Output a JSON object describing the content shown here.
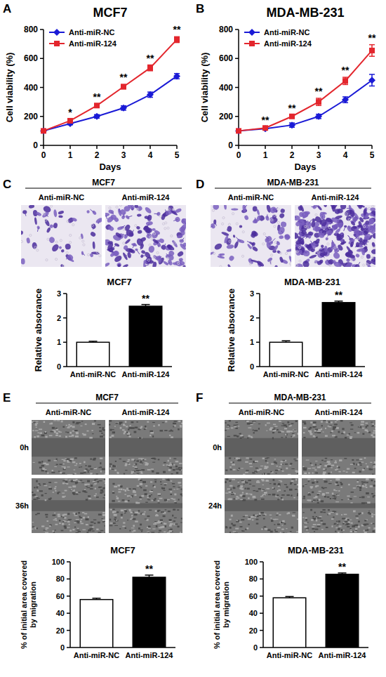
{
  "chart_data": [
    {
      "panel": "A",
      "type": "line",
      "title": "MCF7",
      "x_label": "Days",
      "y_label": "Cell viability (%)",
      "x": [
        0,
        1,
        2,
        3,
        4,
        5
      ],
      "xlim": [
        0,
        5
      ],
      "xticks": [
        0,
        1,
        2,
        3,
        4,
        5
      ],
      "ylim": [
        0,
        800
      ],
      "yticks": [
        0,
        200,
        400,
        600,
        800
      ],
      "grid": false,
      "legend": "top-left",
      "series": [
        {
          "name": "Anti-miR-NC",
          "color": "#1a1ad6",
          "marker": "diamond",
          "values": [
            100,
            150,
            200,
            258,
            350,
            478
          ],
          "errors": [
            0,
            8,
            12,
            15,
            18,
            18
          ]
        },
        {
          "name": "Anti-miR-124",
          "color": "#e3262d",
          "marker": "square",
          "values": [
            100,
            170,
            275,
            405,
            535,
            730
          ],
          "errors": [
            0,
            8,
            10,
            15,
            20,
            20
          ]
        }
      ],
      "annotations": [
        {
          "x": 1,
          "text": "*"
        },
        {
          "x": 2,
          "text": "**"
        },
        {
          "x": 3,
          "text": "**"
        },
        {
          "x": 4,
          "text": "**"
        },
        {
          "x": 5,
          "text": "**"
        }
      ]
    },
    {
      "panel": "B",
      "type": "line",
      "title": "MDA-MB-231",
      "x_label": "Days",
      "y_label": "Cell viability (%)",
      "x": [
        0,
        1,
        2,
        3,
        4,
        5
      ],
      "xlim": [
        0,
        5
      ],
      "xticks": [
        0,
        1,
        2,
        3,
        4,
        5
      ],
      "ylim": [
        0,
        800
      ],
      "yticks": [
        0,
        200,
        400,
        600,
        800
      ],
      "grid": false,
      "legend": "top-left",
      "series": [
        {
          "name": "Anti-miR-NC",
          "color": "#1a1ad6",
          "marker": "diamond",
          "values": [
            100,
            115,
            140,
            200,
            315,
            450
          ],
          "errors": [
            0,
            8,
            15,
            15,
            20,
            40
          ]
        },
        {
          "name": "Anti-miR-124",
          "color": "#e3262d",
          "marker": "square",
          "values": [
            100,
            120,
            200,
            300,
            445,
            655
          ],
          "errors": [
            0,
            8,
            10,
            25,
            25,
            40
          ]
        }
      ],
      "annotations": [
        {
          "x": 1,
          "text": "**"
        },
        {
          "x": 2,
          "text": "**"
        },
        {
          "x": 3,
          "text": "**"
        },
        {
          "x": 4,
          "text": "**"
        },
        {
          "x": 5,
          "text": "**"
        }
      ]
    },
    {
      "panel": "C",
      "type": "bar",
      "image_header": "MCF7",
      "image_columns": [
        "Anti-miR-NC",
        "Anti-miR-124"
      ],
      "title": "MCF7",
      "y_label": "Relative absorance",
      "categories": [
        "Anti-miR-NC",
        "Anti-miR-124"
      ],
      "values": [
        1.0,
        2.48
      ],
      "errors": [
        0.04,
        0.07
      ],
      "colors": [
        "#ffffff",
        "#000000"
      ],
      "ylim": [
        0,
        3
      ],
      "yticks": [
        0,
        1,
        2,
        3
      ],
      "grid": false,
      "annotations": [
        {
          "index": 1,
          "text": "**"
        }
      ]
    },
    {
      "panel": "D",
      "type": "bar",
      "image_header": "MDA-MB-231",
      "image_columns": [
        "Anti-miR-NC",
        "Anti-miR-124"
      ],
      "title": "MDA-MB-231",
      "y_label": "Relative absorance",
      "categories": [
        "Anti-miR-NC",
        "Anti-miR-124"
      ],
      "values": [
        1.0,
        2.63
      ],
      "errors": [
        0.06,
        0.06
      ],
      "colors": [
        "#ffffff",
        "#000000"
      ],
      "ylim": [
        0,
        3
      ],
      "yticks": [
        0,
        1,
        2,
        3
      ],
      "grid": false,
      "annotations": [
        {
          "index": 1,
          "text": "**"
        }
      ]
    },
    {
      "panel": "E",
      "type": "bar",
      "image_header": "MCF7",
      "image_columns": [
        "Anti-miR-NC",
        "Anti-miR-124"
      ],
      "image_rows": [
        "0h",
        "36h"
      ],
      "title": "MCF7",
      "y_label": [
        "% of initial area covered",
        "by migration"
      ],
      "categories": [
        "Anti-miR-NC",
        "Anti-miR-124"
      ],
      "values": [
        56,
        82
      ],
      "errors": [
        1.5,
        2.5
      ],
      "colors": [
        "#ffffff",
        "#000000"
      ],
      "ylim": [
        0,
        100
      ],
      "yticks": [
        0,
        20,
        40,
        60,
        80,
        100
      ],
      "grid": false,
      "annotations": [
        {
          "index": 1,
          "text": "**"
        }
      ]
    },
    {
      "panel": "F",
      "type": "bar",
      "image_header": "MDA-MB-231",
      "image_columns": [
        "Anti-miR-NC",
        "Anti-miR-124"
      ],
      "image_rows": [
        "0h",
        "24h"
      ],
      "title": "MDA-MB-231",
      "y_label": [
        "% of initial area covered",
        "by migration"
      ],
      "categories": [
        "Anti-miR-NC",
        "Anti-miR-124"
      ],
      "values": [
        58,
        85.5
      ],
      "errors": [
        1.5,
        1.5
      ],
      "colors": [
        "#ffffff",
        "#000000"
      ],
      "ylim": [
        0,
        100
      ],
      "yticks": [
        0,
        20,
        40,
        60,
        80,
        100
      ],
      "grid": false,
      "annotations": [
        {
          "index": 1,
          "text": "**"
        }
      ]
    }
  ]
}
